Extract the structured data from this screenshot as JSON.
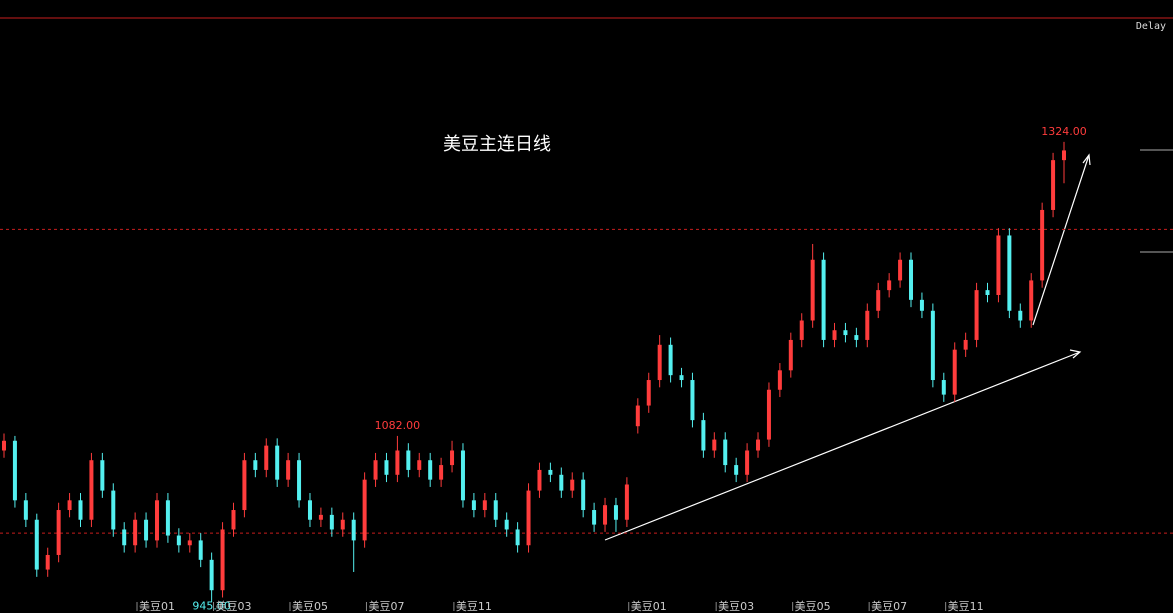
{
  "chart_data": {
    "type": "candlestick",
    "title": "美豆主连日线",
    "status": "Delay",
    "up_color": "#ff3c3c",
    "down_color": "#54f0f0",
    "ref_line_color": "#c81e1e",
    "ylim": [
      942,
      1426
    ],
    "ref_lines": [
      1252,
      1002
    ],
    "high_labels": [
      {
        "index": 36,
        "label": "1082.00"
      },
      {
        "index": 97,
        "label": "1324.00"
      }
    ],
    "low_labels": [
      {
        "index": 19,
        "label": "945.00"
      }
    ],
    "x_labels": [
      {
        "index": 14,
        "label": "美豆01"
      },
      {
        "index": 21,
        "label": "美豆03"
      },
      {
        "index": 28,
        "label": "美豆05"
      },
      {
        "index": 35,
        "label": "美豆07"
      },
      {
        "index": 43,
        "label": "美豆11"
      },
      {
        "index": 59,
        "label": "美豆01"
      },
      {
        "index": 67,
        "label": "美豆03"
      },
      {
        "index": 74,
        "label": "美豆05"
      },
      {
        "index": 81,
        "label": "美豆07"
      },
      {
        "index": 88,
        "label": "美豆11"
      }
    ],
    "candles": [
      [
        1070,
        1084,
        1064,
        1078
      ],
      [
        1078,
        1082,
        1023,
        1029
      ],
      [
        1029,
        1035,
        1007,
        1013
      ],
      [
        1013,
        1018,
        966,
        972
      ],
      [
        972,
        990,
        966,
        984
      ],
      [
        984,
        1027,
        978,
        1021
      ],
      [
        1021,
        1035,
        1015,
        1029
      ],
      [
        1029,
        1035,
        1007,
        1013
      ],
      [
        1013,
        1068,
        1007,
        1062
      ],
      [
        1062,
        1068,
        1031,
        1037
      ],
      [
        1037,
        1043,
        999,
        1005
      ],
      [
        1005,
        1011,
        986,
        992
      ],
      [
        992,
        1019,
        986,
        1013
      ],
      [
        1013,
        1019,
        990,
        996
      ],
      [
        996,
        1035,
        990,
        1029
      ],
      [
        1029,
        1035,
        994,
        1000
      ],
      [
        1000,
        1006,
        986,
        992
      ],
      [
        992,
        1002,
        986,
        996
      ],
      [
        996,
        1002,
        974,
        980
      ],
      [
        980,
        986,
        945,
        955
      ],
      [
        955,
        1011,
        949,
        1005
      ],
      [
        1005,
        1027,
        999,
        1021
      ],
      [
        1021,
        1068,
        1015,
        1062
      ],
      [
        1062,
        1068,
        1048,
        1054
      ],
      [
        1054,
        1080,
        1048,
        1074
      ],
      [
        1074,
        1080,
        1040,
        1046
      ],
      [
        1046,
        1068,
        1040,
        1062
      ],
      [
        1062,
        1068,
        1023,
        1029
      ],
      [
        1029,
        1035,
        1007,
        1013
      ],
      [
        1013,
        1023,
        1007,
        1017
      ],
      [
        1017,
        1023,
        999,
        1005
      ],
      [
        1005,
        1019,
        999,
        1013
      ],
      [
        1013,
        1019,
        970,
        996
      ],
      [
        996,
        1052,
        990,
        1046
      ],
      [
        1046,
        1068,
        1040,
        1062
      ],
      [
        1062,
        1068,
        1044,
        1050
      ],
      [
        1050,
        1082,
        1044,
        1070
      ],
      [
        1070,
        1076,
        1048,
        1054
      ],
      [
        1054,
        1068,
        1048,
        1062
      ],
      [
        1062,
        1068,
        1040,
        1046
      ],
      [
        1046,
        1064,
        1040,
        1058
      ],
      [
        1058,
        1078,
        1052,
        1070
      ],
      [
        1070,
        1076,
        1023,
        1029
      ],
      [
        1029,
        1035,
        1015,
        1021
      ],
      [
        1021,
        1035,
        1015,
        1029
      ],
      [
        1029,
        1035,
        1007,
        1013
      ],
      [
        1013,
        1019,
        999,
        1005
      ],
      [
        1005,
        1011,
        986,
        992
      ],
      [
        992,
        1043,
        986,
        1037
      ],
      [
        1037,
        1060,
        1031,
        1054
      ],
      [
        1054,
        1060,
        1044,
        1050
      ],
      [
        1050,
        1056,
        1031,
        1037
      ],
      [
        1037,
        1052,
        1031,
        1046
      ],
      [
        1046,
        1052,
        1015,
        1021
      ],
      [
        1021,
        1027,
        1003,
        1009
      ],
      [
        1009,
        1031,
        1003,
        1025
      ],
      [
        1025,
        1031,
        1003,
        1013
      ],
      [
        1013,
        1048,
        1007,
        1042
      ],
      [
        1090,
        1113,
        1084,
        1107
      ],
      [
        1107,
        1134,
        1101,
        1128
      ],
      [
        1128,
        1165,
        1122,
        1157
      ],
      [
        1157,
        1163,
        1126,
        1132
      ],
      [
        1132,
        1138,
        1122,
        1128
      ],
      [
        1128,
        1134,
        1089,
        1095
      ],
      [
        1095,
        1101,
        1064,
        1070
      ],
      [
        1070,
        1085,
        1064,
        1079
      ],
      [
        1079,
        1085,
        1052,
        1058
      ],
      [
        1058,
        1064,
        1044,
        1050
      ],
      [
        1050,
        1076,
        1044,
        1070
      ],
      [
        1070,
        1085,
        1064,
        1079
      ],
      [
        1079,
        1126,
        1073,
        1120
      ],
      [
        1120,
        1142,
        1114,
        1136
      ],
      [
        1136,
        1167,
        1130,
        1161
      ],
      [
        1161,
        1183,
        1155,
        1177
      ],
      [
        1177,
        1240,
        1171,
        1227
      ],
      [
        1227,
        1233,
        1155,
        1161
      ],
      [
        1161,
        1175,
        1155,
        1169
      ],
      [
        1169,
        1175,
        1159,
        1165
      ],
      [
        1165,
        1171,
        1155,
        1161
      ],
      [
        1161,
        1191,
        1155,
        1185
      ],
      [
        1185,
        1208,
        1179,
        1202
      ],
      [
        1202,
        1216,
        1196,
        1210
      ],
      [
        1210,
        1233,
        1204,
        1227
      ],
      [
        1227,
        1233,
        1188,
        1194
      ],
      [
        1194,
        1200,
        1179,
        1185
      ],
      [
        1185,
        1191,
        1122,
        1128
      ],
      [
        1128,
        1134,
        1110,
        1116
      ],
      [
        1116,
        1159,
        1110,
        1153
      ],
      [
        1153,
        1167,
        1147,
        1161
      ],
      [
        1161,
        1208,
        1155,
        1202
      ],
      [
        1202,
        1208,
        1192,
        1198
      ],
      [
        1198,
        1253,
        1192,
        1247
      ],
      [
        1247,
        1253,
        1179,
        1185
      ],
      [
        1185,
        1191,
        1171,
        1177
      ],
      [
        1177,
        1216,
        1171,
        1210
      ],
      [
        1210,
        1274,
        1204,
        1268
      ],
      [
        1268,
        1315,
        1262,
        1309
      ],
      [
        1309,
        1324,
        1290,
        1317
      ]
    ]
  }
}
